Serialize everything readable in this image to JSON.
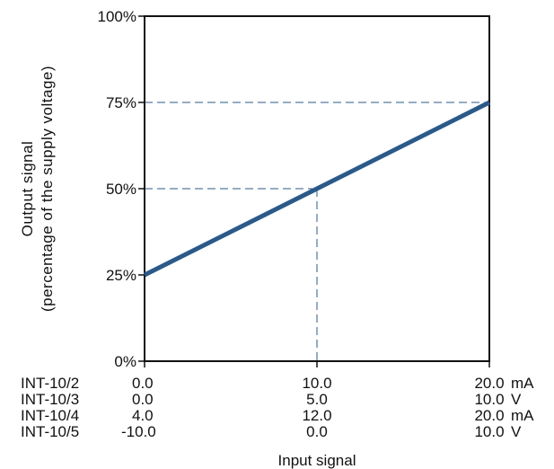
{
  "chart_data": {
    "type": "line",
    "title": "",
    "ylabel_line1": "Output signal",
    "ylabel_line2": "(percentage of the supply voltage)",
    "xlabel": "Input signal",
    "y_ticks": [
      "0%",
      "25%",
      "50%",
      "75%",
      "100%"
    ],
    "ylim": [
      0,
      100
    ],
    "xlim": [
      0,
      100
    ],
    "x_scales": [
      {
        "model": "INT-10/2",
        "ticks": [
          "0.0",
          "10.0",
          "20.0"
        ],
        "unit": "mA"
      },
      {
        "model": "INT-10/3",
        "ticks": [
          "0.0",
          "5.0",
          "10.0"
        ],
        "unit": "V"
      },
      {
        "model": "INT-10/4",
        "ticks": [
          "4.0",
          "12.0",
          "20.0"
        ],
        "unit": "mA"
      },
      {
        "model": "INT-10/5",
        "ticks": [
          "-10.0",
          "0.0",
          "10.0"
        ],
        "unit": "V"
      }
    ],
    "series": [
      {
        "x": [
          0,
          50,
          100
        ],
        "y": [
          25,
          50,
          75
        ]
      }
    ],
    "reference_lines": [
      {
        "x": 50,
        "y": 50
      },
      {
        "x": 100,
        "y": 75
      }
    ],
    "grid": false,
    "line_color": "#2b5a8a"
  }
}
